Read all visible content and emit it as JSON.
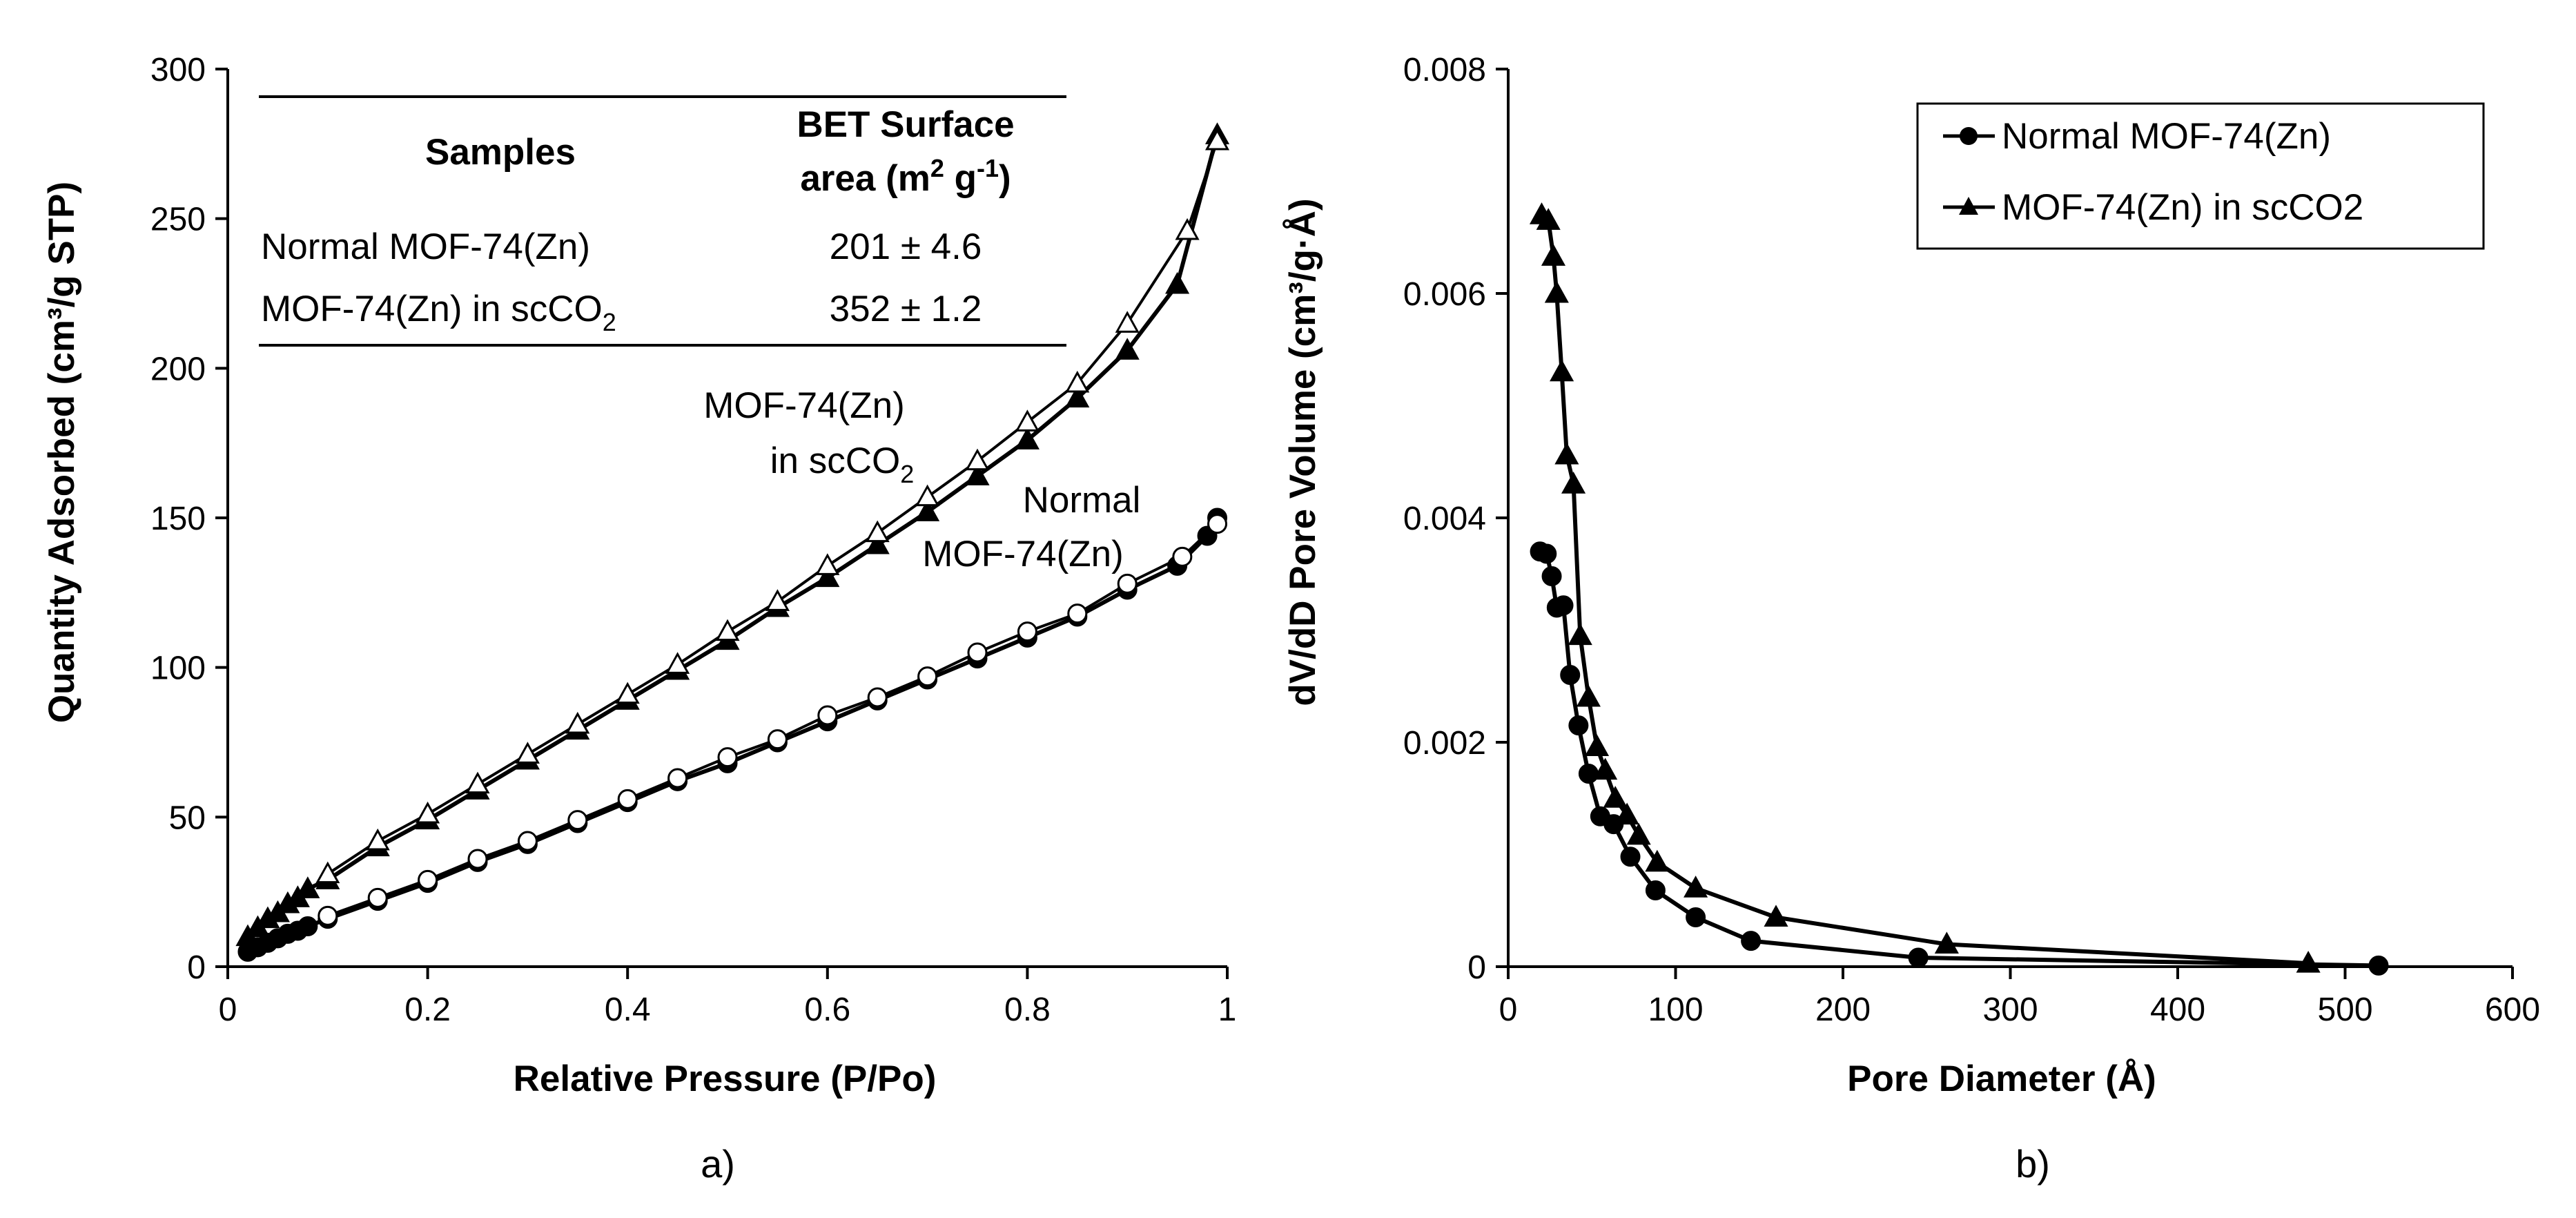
{
  "chart_data": [
    {
      "type": "line",
      "panel_label": "a)",
      "xlabel": "Relative Pressure (P/Po)",
      "ylabel": "Quantity Adsorbed (cm³/g STP)",
      "xlim": [
        0,
        1
      ],
      "ylim": [
        0,
        300
      ],
      "x_ticks": [
        "0",
        "0.2",
        "0.4",
        "0.6",
        "0.8",
        "1"
      ],
      "y_ticks": [
        "0",
        "50",
        "100",
        "150",
        "200",
        "250",
        "300"
      ],
      "grid": false,
      "series": [
        {
          "name": "MOF-74(Zn) in scCO2 adsorption",
          "marker": "triangle-filled",
          "x": [
            0.02,
            0.03,
            0.04,
            0.05,
            0.06,
            0.07,
            0.08,
            0.1,
            0.15,
            0.2,
            0.25,
            0.3,
            0.35,
            0.4,
            0.45,
            0.5,
            0.55,
            0.6,
            0.65,
            0.7,
            0.75,
            0.8,
            0.85,
            0.9,
            0.95,
            0.99
          ],
          "y": [
            10,
            13,
            16,
            18,
            21,
            23,
            26,
            29,
            40,
            49,
            59,
            69,
            79,
            89,
            99,
            109,
            120,
            130,
            141,
            152,
            164,
            176,
            190,
            206,
            228,
            278
          ]
        },
        {
          "name": "MOF-74(Zn) in scCO2 desorption",
          "marker": "triangle-open",
          "x": [
            0.99,
            0.96,
            0.9,
            0.85,
            0.8,
            0.75,
            0.7,
            0.65,
            0.6,
            0.55,
            0.5,
            0.45,
            0.4,
            0.35,
            0.3,
            0.25,
            0.2,
            0.15,
            0.1
          ],
          "y": [
            276,
            246,
            215,
            195,
            182,
            169,
            157,
            145,
            134,
            122,
            112,
            101,
            91,
            81,
            71,
            61,
            51,
            42,
            31
          ]
        },
        {
          "name": "Normal MOF-74(Zn) adsorption",
          "marker": "circle-filled",
          "x": [
            0.02,
            0.03,
            0.04,
            0.05,
            0.06,
            0.07,
            0.08,
            0.1,
            0.15,
            0.2,
            0.25,
            0.3,
            0.35,
            0.4,
            0.45,
            0.5,
            0.55,
            0.6,
            0.65,
            0.7,
            0.75,
            0.8,
            0.85,
            0.9,
            0.95,
            0.98,
            0.99
          ],
          "y": [
            5,
            6.5,
            8,
            9.5,
            11,
            12,
            13.5,
            16,
            22,
            28,
            35,
            41,
            48,
            55,
            62,
            68,
            75,
            82,
            89,
            96,
            103,
            110,
            117,
            126,
            134,
            144,
            150
          ]
        },
        {
          "name": "Normal MOF-74(Zn) desorption",
          "marker": "circle-open",
          "x": [
            0.99,
            0.955,
            0.9,
            0.85,
            0.8,
            0.75,
            0.7,
            0.65,
            0.6,
            0.55,
            0.5,
            0.45,
            0.4,
            0.35,
            0.3,
            0.25,
            0.2,
            0.15,
            0.1
          ],
          "y": [
            148,
            137,
            128,
            118,
            112,
            105,
            97,
            90,
            84,
            76,
            70,
            63,
            56,
            49,
            42,
            36,
            29,
            23,
            17
          ]
        }
      ],
      "annotations": [
        {
          "text_line1": "MOF-74(Zn)",
          "text_line2_main": "in scCO",
          "text_line2_sub": "2"
        },
        {
          "text_line1": "Normal",
          "text_line2": "MOF-74(Zn)"
        }
      ],
      "inset_table": {
        "header_samples": "Samples",
        "header_bet_line1": "BET Surface",
        "header_bet_line2_main": "area (m",
        "header_bet_sup1": "2",
        "header_bet_mid": " g",
        "header_bet_sup2": "-1",
        "header_bet_end": ")",
        "rows": [
          {
            "sample": "Normal MOF-74(Zn)",
            "sample_sub": "",
            "value": "201 ± 4.6"
          },
          {
            "sample": "MOF-74(Zn) in scCO",
            "sample_sub": "2",
            "value": "352 ± 1.2"
          }
        ]
      }
    },
    {
      "type": "line",
      "panel_label": "b)",
      "xlabel": "Pore Diameter (Å)",
      "ylabel": "dV/dD Pore Volume (cm³/g·Å)",
      "xlim": [
        0,
        600
      ],
      "ylim": [
        0,
        0.008
      ],
      "x_ticks": [
        "0",
        "100",
        "200",
        "300",
        "400",
        "500",
        "600"
      ],
      "y_ticks": [
        "0",
        "0.002",
        "0.004",
        "0.006",
        "0.008"
      ],
      "grid": false,
      "legend_position": "top-right",
      "series": [
        {
          "name": "Normal MOF-74(Zn)",
          "marker": "circle-filled",
          "x": [
            19,
            23,
            26,
            29,
            33,
            37,
            42,
            48,
            55,
            63,
            73,
            88,
            112,
            145,
            245,
            520
          ],
          "y": [
            0.0037,
            0.00368,
            0.00348,
            0.0032,
            0.00322,
            0.0026,
            0.00215,
            0.00172,
            0.00134,
            0.00127,
            0.00098,
            0.00068,
            0.00044,
            0.00023,
            8e-05,
            1e-05
          ]
        },
        {
          "name": "MOF-74(Zn) in scCO2",
          "marker": "triangle-filled",
          "x": [
            20,
            24,
            27,
            29,
            32,
            35,
            39,
            43,
            48,
            53,
            58,
            64,
            71,
            78,
            89,
            112,
            160,
            262,
            478
          ],
          "y": [
            0.0067,
            0.00665,
            0.00633,
            0.006,
            0.0053,
            0.00456,
            0.0043,
            0.00295,
            0.0024,
            0.00196,
            0.00175,
            0.0015,
            0.00135,
            0.00117,
            0.00093,
            0.0007,
            0.00044,
            0.0002,
            3e-05
          ]
        }
      ]
    }
  ]
}
